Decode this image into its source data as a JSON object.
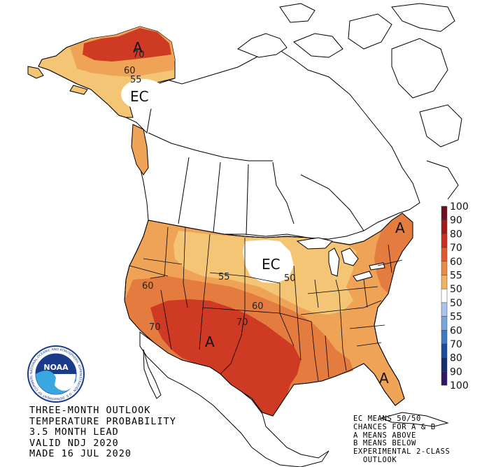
{
  "title_lines": [
    "THREE-MONTH OUTLOOK",
    "TEMPERATURE PROBABILITY",
    "3.5 MONTH LEAD",
    "VALID NDJ 2020",
    "MADE 16 JUL 2020"
  ],
  "note_lines": [
    "EC MEANS 50/50",
    "CHANCES FOR A & B",
    "A MEANS ABOVE",
    "B MEANS BELOW",
    "EXPERIMENTAL 2-CLASS",
    "  OUTLOOK"
  ],
  "logo_text": "NOAA",
  "logo_ring_text": "NATIONAL OCEANIC AND ATMOSPHERIC ADMINISTRATION · U.S. DEPARTMENT OF COMMERCE",
  "region_labels": {
    "alaska_a": "A",
    "alaska_ec": "EC",
    "midwest_ec": "EC",
    "southwest_a": "A",
    "northeast_a": "A",
    "florida_a": "A"
  },
  "contour_labels": {
    "ak70": "70",
    "ak60": "60",
    "ak55": "55",
    "west60": "60",
    "sw70": "70",
    "plains55": "55",
    "mw50": "50",
    "c60": "60",
    "c70": "70"
  },
  "legend": {
    "labels": [
      "100",
      "90",
      "80",
      "70",
      "60",
      "55",
      "50",
      "50",
      "55",
      "60",
      "70",
      "80",
      "90",
      "100"
    ],
    "colors": [
      "#6e0f24",
      "#a11a1a",
      "#cc2c22",
      "#e3582f",
      "#e98a45",
      "#f0b45e",
      "#ffffff",
      "#ffffff",
      "#a9c4ec",
      "#75a6dc",
      "#3d7ac4",
      "#1b4b9e",
      "#12306e",
      "#2e1863"
    ]
  },
  "colors": {
    "c50_55": "#f3c574",
    "c55_60": "#eea356",
    "c60_70": "#e57c3f",
    "c70_80": "#cf3a24",
    "land": "#ffffff",
    "border": "#000000"
  }
}
